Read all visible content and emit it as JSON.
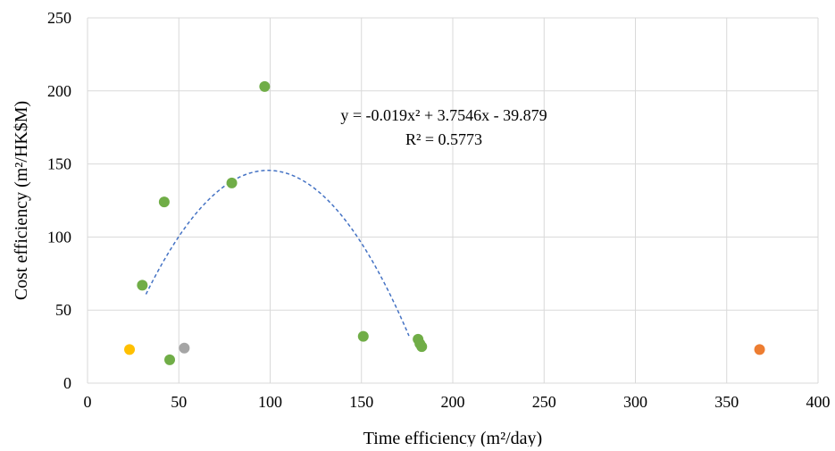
{
  "chart_data": {
    "type": "scatter",
    "xlabel": "Time efficiency (m²/day)",
    "ylabel": "Cost efficiency (m²/HK$M)",
    "xlim": [
      0,
      400
    ],
    "ylim": [
      0,
      250
    ],
    "x_ticks": [
      0,
      50,
      100,
      150,
      200,
      250,
      300,
      350,
      400
    ],
    "y_ticks": [
      0,
      50,
      100,
      150,
      200,
      250
    ],
    "grid": true,
    "legend": "none",
    "points": [
      {
        "x": 23,
        "y": 23,
        "color": "#FFC000"
      },
      {
        "x": 30,
        "y": 67,
        "color": "#70AD47"
      },
      {
        "x": 42,
        "y": 124,
        "color": "#70AD47"
      },
      {
        "x": 45,
        "y": 16,
        "color": "#70AD47"
      },
      {
        "x": 53,
        "y": 24,
        "color": "#A5A5A5"
      },
      {
        "x": 79,
        "y": 137,
        "color": "#70AD47"
      },
      {
        "x": 97,
        "y": 203,
        "color": "#70AD47"
      },
      {
        "x": 151,
        "y": 32,
        "color": "#70AD47"
      },
      {
        "x": 181,
        "y": 30,
        "color": "#70AD47"
      },
      {
        "x": 182,
        "y": 27,
        "color": "#70AD47"
      },
      {
        "x": 183,
        "y": 25,
        "color": "#70AD47"
      },
      {
        "x": 368,
        "y": 23,
        "color": "#ED7D31"
      }
    ],
    "trendline": {
      "type": "polynomial",
      "a": -0.019,
      "b": 3.7546,
      "c": -39.879,
      "x_range": [
        32,
        176
      ],
      "color": "#4472C4",
      "style": "dashed",
      "equation_label": "y = -0.019x² + 3.7546x - 39.879",
      "r2_label": "R² = 0.5773"
    }
  }
}
